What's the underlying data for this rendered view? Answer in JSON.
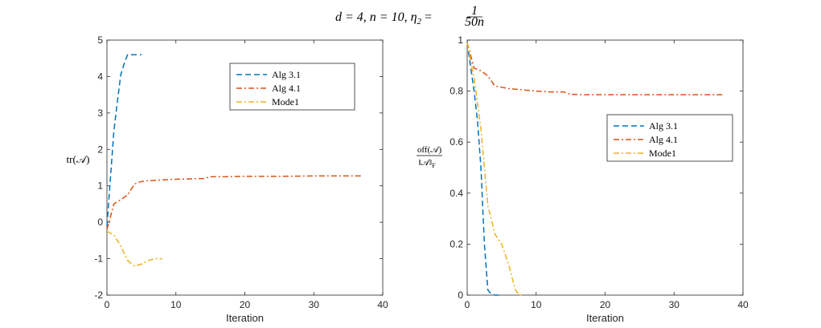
{
  "figure": {
    "title": "d = 4, n = 10, η₂ = 1/50n",
    "title_parts": {
      "main": "d = 4, n = 10, η",
      "sub": "2",
      "eq": " = ",
      "num": "1",
      "den": "50n"
    }
  },
  "chart_data": [
    {
      "type": "line",
      "title": "",
      "xlabel": "Iteration",
      "ylabel": "tr(𝒜)",
      "xlim": [
        0,
        40
      ],
      "ylim": [
        -2,
        5
      ],
      "xticks": [
        0,
        10,
        20,
        30,
        40
      ],
      "yticks": [
        -2,
        -1,
        0,
        1,
        2,
        3,
        4,
        5
      ],
      "ytick_labels": [
        "-2",
        "-1",
        "0",
        "1",
        "2",
        "3",
        "4",
        "5"
      ],
      "grid": false,
      "legend_position": "top-right",
      "series": [
        {
          "name": "Alg 3.1",
          "color": "#0072BD",
          "dash": "dashed",
          "x": [
            0,
            0.5,
            1,
            1.5,
            2,
            2.5,
            3,
            4,
            5
          ],
          "y": [
            -0.1,
            1.2,
            2.5,
            3.3,
            4.05,
            4.35,
            4.6,
            4.6,
            4.6
          ]
        },
        {
          "name": "Alg 4.1",
          "color": "#D95319",
          "dash": "dashdot",
          "x": [
            0,
            1,
            2,
            3,
            4,
            5,
            6,
            8,
            10,
            12,
            14,
            15,
            17,
            20,
            25,
            30,
            35,
            37
          ],
          "y": [
            -0.2,
            0.5,
            0.62,
            0.75,
            1.05,
            1.12,
            1.14,
            1.16,
            1.18,
            1.19,
            1.2,
            1.25,
            1.25,
            1.26,
            1.26,
            1.27,
            1.27,
            1.27
          ]
        },
        {
          "name": "Mode1",
          "color": "#EDB120",
          "dash": "dashdot",
          "x": [
            0,
            1,
            2,
            3,
            4,
            5,
            6,
            7,
            8
          ],
          "y": [
            -0.25,
            -0.35,
            -0.65,
            -1.05,
            -1.2,
            -1.15,
            -1.05,
            -1.0,
            -1.0
          ]
        }
      ]
    },
    {
      "type": "line",
      "title": "",
      "xlabel": "Iteration",
      "ylabel": "off(𝒜)/‖𝒜‖_F",
      "ylabel_num": "off(𝒜)",
      "ylabel_den": "‖𝒜‖",
      "ylabel_den_sub": "F",
      "xlim": [
        0,
        40
      ],
      "ylim": [
        0,
        1
      ],
      "xticks": [
        0,
        10,
        20,
        30,
        40
      ],
      "yticks": [
        0,
        0.2,
        0.4,
        0.6,
        0.8,
        1
      ],
      "ytick_labels": [
        "0",
        "0.2",
        "0.4",
        "0.6",
        "0.8",
        "1"
      ],
      "grid": false,
      "legend_position": "middle-right",
      "series": [
        {
          "name": "Alg 3.1",
          "color": "#0072BD",
          "dash": "dashed",
          "x": [
            0,
            1,
            1.5,
            2,
            2.5,
            3,
            3.5,
            4,
            5
          ],
          "y": [
            0.99,
            0.8,
            0.68,
            0.5,
            0.2,
            0.02,
            0.003,
            0,
            0
          ]
        },
        {
          "name": "Alg 4.1",
          "color": "#D95319",
          "dash": "dashdot",
          "x": [
            0,
            1,
            2,
            3,
            4,
            5,
            6,
            8,
            10,
            12,
            14,
            15,
            17,
            20,
            25,
            30,
            35,
            37
          ],
          "y": [
            0.99,
            0.89,
            0.88,
            0.86,
            0.82,
            0.815,
            0.81,
            0.805,
            0.8,
            0.797,
            0.797,
            0.787,
            0.786,
            0.786,
            0.786,
            0.786,
            0.786,
            0.786
          ]
        },
        {
          "name": "Mode1",
          "color": "#EDB120",
          "dash": "dashdot",
          "x": [
            0,
            1,
            2,
            2.5,
            3,
            3.5,
            4,
            5,
            6,
            7,
            7.5,
            8
          ],
          "y": [
            0.99,
            0.85,
            0.65,
            0.5,
            0.35,
            0.3,
            0.24,
            0.2,
            0.12,
            0.02,
            0.002,
            0
          ]
        }
      ]
    }
  ]
}
